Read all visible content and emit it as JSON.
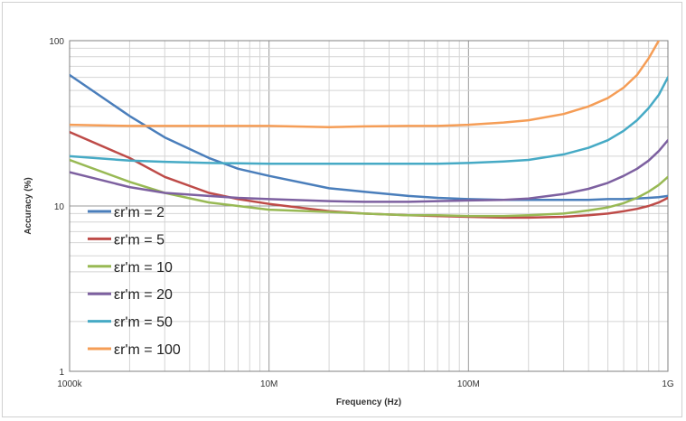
{
  "chart_data": {
    "type": "line",
    "title": "",
    "xlabel": "Frequency (Hz)",
    "ylabel": "Accuracy  (%)",
    "x_scale": "log",
    "y_scale": "log",
    "xlim": [
      1000000,
      1000000000
    ],
    "ylim": [
      1,
      100
    ],
    "x_ticks": [
      {
        "value": 1000000,
        "label": "1000k"
      },
      {
        "value": 10000000,
        "label": "10M"
      },
      {
        "value": 100000000,
        "label": "100M"
      },
      {
        "value": 1000000000,
        "label": "1G"
      }
    ],
    "y_ticks": [
      {
        "value": 1,
        "label": "1"
      },
      {
        "value": 10,
        "label": "10"
      },
      {
        "value": 100,
        "label": "100"
      }
    ],
    "grid": true,
    "legend_position": "lower-left",
    "x": [
      1000000,
      2000000,
      3000000,
      5000000,
      7000000,
      10000000,
      20000000,
      30000000,
      50000000,
      70000000,
      100000000,
      150000000,
      200000000,
      300000000,
      400000000,
      500000000,
      600000000,
      700000000,
      800000000,
      900000000,
      1000000000
    ],
    "series": [
      {
        "name": "εr'm = 2",
        "color": "#4a7ebb",
        "values": [
          62,
          35,
          26,
          19.5,
          16.8,
          15.2,
          12.8,
          12.2,
          11.5,
          11.2,
          11.0,
          10.9,
          10.9,
          10.9,
          10.9,
          11.0,
          11.0,
          11.1,
          11.2,
          11.3,
          11.5
        ]
      },
      {
        "name": "εr'm = 5",
        "color": "#be4b48",
        "values": [
          28,
          19.5,
          15,
          12,
          11,
          10.3,
          9.3,
          9.0,
          8.8,
          8.7,
          8.6,
          8.5,
          8.5,
          8.6,
          8.8,
          9.0,
          9.3,
          9.6,
          10.0,
          10.5,
          11.2
        ]
      },
      {
        "name": "εr'm = 10",
        "color": "#98b954",
        "values": [
          19,
          14,
          12,
          10.5,
          10,
          9.5,
          9.2,
          9.0,
          8.8,
          8.8,
          8.7,
          8.7,
          8.8,
          9.0,
          9.4,
          9.8,
          10.4,
          11.2,
          12.2,
          13.4,
          15
        ]
      },
      {
        "name": "εr'm = 20",
        "color": "#7d60a0",
        "values": [
          16,
          13,
          12,
          11.5,
          11.2,
          11,
          10.7,
          10.6,
          10.6,
          10.7,
          10.8,
          10.9,
          11.1,
          11.8,
          12.7,
          13.8,
          15.2,
          16.8,
          18.8,
          21.5,
          25
        ]
      },
      {
        "name": "εr'm = 50",
        "color": "#46aac5",
        "values": [
          20,
          18.8,
          18.5,
          18.2,
          18.1,
          18,
          18,
          18,
          18,
          18,
          18.2,
          18.6,
          19,
          20.5,
          22.5,
          25,
          28.5,
          33,
          39,
          47,
          60
        ]
      },
      {
        "name": "εr'm = 100",
        "color": "#f59d56",
        "values": [
          31,
          30.5,
          30.5,
          30.5,
          30.5,
          30.5,
          30,
          30.3,
          30.5,
          30.5,
          31,
          32,
          33,
          36,
          40,
          45,
          52,
          62,
          78,
          100,
          130
        ]
      }
    ]
  }
}
